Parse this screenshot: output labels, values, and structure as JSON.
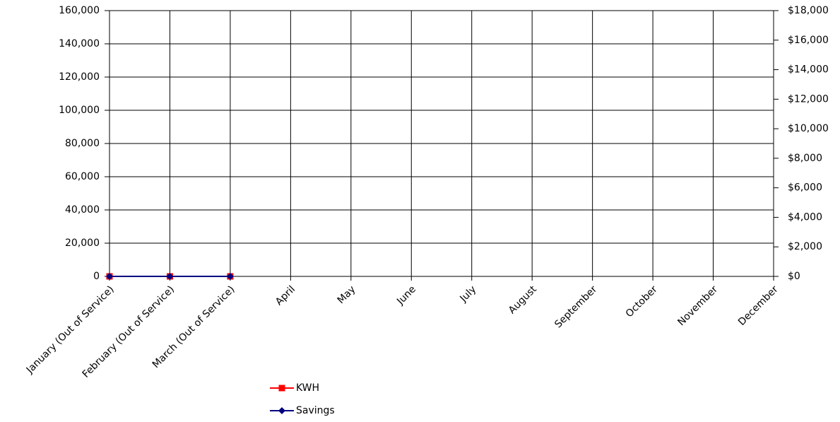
{
  "chart_data": {
    "type": "line",
    "categories": [
      "January  (Out of Service)",
      "February   (Out of Service)",
      "March    (Out of Service)",
      "April",
      "May",
      "June",
      "July",
      "August",
      "September",
      "October",
      "November",
      "December"
    ],
    "series": [
      {
        "name": "KWH",
        "color": "#ff0000",
        "marker": "square",
        "values": [
          0,
          0,
          0,
          null,
          null,
          null,
          null,
          null,
          null,
          null,
          null,
          null
        ]
      },
      {
        "name": "Savings",
        "color": "#000080",
        "marker": "diamond",
        "axis": "y2",
        "values": [
          0,
          0,
          0,
          null,
          null,
          null,
          null,
          null,
          null,
          null,
          null,
          null
        ]
      }
    ],
    "ylim": [
      0,
      160000
    ],
    "yticks": [
      0,
      {
        "value": 20000,
        "label": "20,000"
      },
      {
        "value": 40000,
        "label": "40,000"
      },
      {
        "value": 60000,
        "label": "60,000"
      },
      {
        "value": 80000,
        "label": "80,000"
      },
      {
        "value": 100000,
        "label": "100,000"
      },
      {
        "value": 120000,
        "label": "120,000"
      },
      {
        "value": 140000,
        "label": "140,000"
      },
      {
        "value": 160000,
        "label": "160,000"
      }
    ],
    "y2lim": [
      0,
      18000
    ],
    "y2ticks": [
      {
        "value": 0,
        "label": "$0"
      },
      {
        "value": 2000,
        "label": "$2,000"
      },
      {
        "value": 4000,
        "label": "$4,000"
      },
      {
        "value": 6000,
        "label": "$6,000"
      },
      {
        "value": 8000,
        "label": "$8,000"
      },
      {
        "value": 10000,
        "label": "$10,000"
      },
      {
        "value": 12000,
        "label": "$12,000"
      },
      {
        "value": 14000,
        "label": "$14,000"
      },
      {
        "value": 16000,
        "label": "$16,000"
      },
      {
        "value": 18000,
        "label": "$18,000"
      }
    ],
    "grid": true,
    "legend": "bottom"
  }
}
